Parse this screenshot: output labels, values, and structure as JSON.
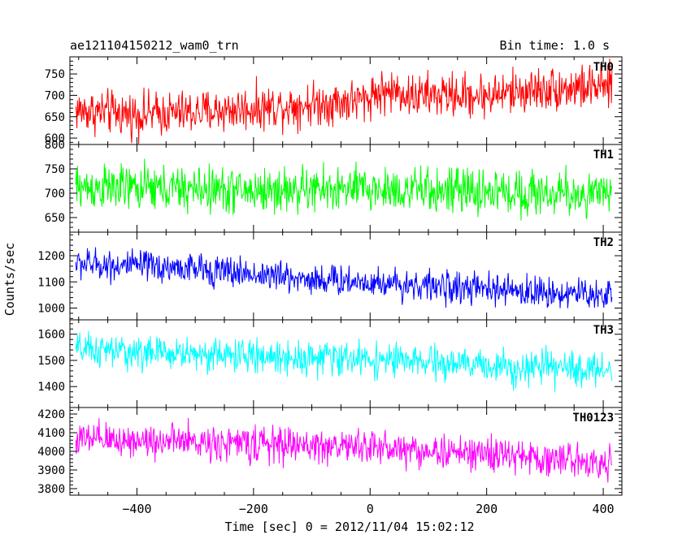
{
  "header": {
    "title": "ae121104150212_wam0_trn",
    "bin_time": "Bin time: 1.0 s"
  },
  "chart_data": {
    "type": "line",
    "title": "ae121104150212_wam0_trn",
    "xlabel": "Time [sec] 0 = 2012/11/04 15:02:12",
    "ylabel": "Counts/sec",
    "xlim": [
      -515,
      432
    ],
    "x_ticks": [
      -400,
      -200,
      0,
      200,
      400
    ],
    "x_tick_labels": [
      "−400",
      "−200",
      "0",
      "200",
      "400"
    ],
    "grid": false,
    "bin_seconds": 1.0,
    "x_range": [
      -505,
      415
    ],
    "panels": [
      {
        "name": "TH0",
        "color": "#ff0000",
        "ylim": [
          585,
          790
        ],
        "yticks": [
          600,
          650,
          700,
          750
        ],
        "trend_x": [
          -505,
          -400,
          -300,
          -200,
          -100,
          0,
          100,
          200,
          300,
          415
        ],
        "trend_y": [
          665,
          655,
          660,
          670,
          680,
          690,
          700,
          700,
          715,
          720
        ],
        "noise_amplitude": 60,
        "step_at": 0,
        "step_size": 15
      },
      {
        "name": "TH1",
        "color": "#00ff00",
        "ylim": [
          620,
          800
        ],
        "yticks": [
          650,
          700,
          750,
          800
        ],
        "trend_x": [
          -505,
          -400,
          -300,
          -200,
          -100,
          0,
          100,
          200,
          300,
          415
        ],
        "trend_y": [
          712,
          710,
          708,
          705,
          707,
          708,
          705,
          703,
          700,
          695
        ],
        "noise_amplitude": 55
      },
      {
        "name": "TH2",
        "color": "#0000ff",
        "ylim": [
          955,
          1290
        ],
        "yticks": [
          1000,
          1100,
          1200
        ],
        "trend_x": [
          -505,
          -400,
          -300,
          -200,
          -100,
          0,
          100,
          200,
          300,
          415
        ],
        "trend_y": [
          1170,
          1160,
          1150,
          1130,
          1110,
          1100,
          1085,
          1070,
          1060,
          1050
        ],
        "noise_amplitude": 70
      },
      {
        "name": "TH3",
        "color": "#00ffff",
        "ylim": [
          1320,
          1655
        ],
        "yticks": [
          1400,
          1500,
          1600
        ],
        "trend_x": [
          -505,
          -400,
          -300,
          -200,
          -100,
          0,
          100,
          200,
          300,
          415
        ],
        "trend_y": [
          1540,
          1530,
          1525,
          1515,
          1510,
          1505,
          1490,
          1480,
          1470,
          1465
        ],
        "noise_amplitude": 75
      },
      {
        "name": "TH0123",
        "color": "#ff00ff",
        "ylim": [
          3765,
          4235
        ],
        "yticks": [
          3800,
          3900,
          4000,
          4100,
          4200
        ],
        "trend_x": [
          -505,
          -400,
          -300,
          -200,
          -100,
          0,
          100,
          200,
          300,
          415
        ],
        "trend_y": [
          4060,
          4060,
          4050,
          4040,
          4030,
          4025,
          4000,
          3985,
          3960,
          3945
        ],
        "noise_amplitude": 110
      }
    ]
  }
}
